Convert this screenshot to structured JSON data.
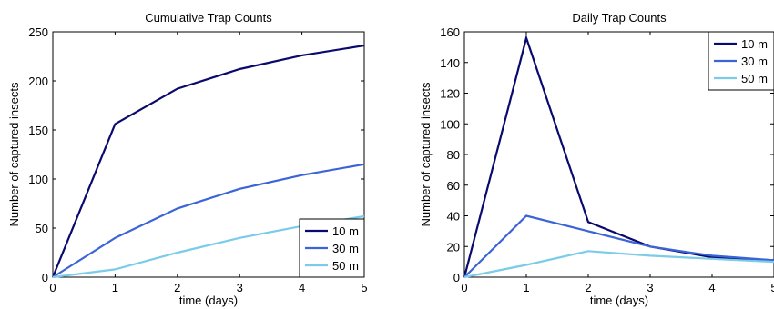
{
  "chart_data": [
    {
      "type": "line",
      "title": "Cumulative Trap Counts",
      "xlabel": "time (days)",
      "ylabel": "Number of captured insects",
      "xlim": [
        0,
        5
      ],
      "ylim": [
        0,
        250
      ],
      "xticks": [
        "0",
        "1",
        "2",
        "3",
        "4",
        "5"
      ],
      "yticks": [
        "0",
        "50",
        "100",
        "150",
        "200",
        "250"
      ],
      "legend_position": "bottom-right",
      "x": [
        0,
        1,
        2,
        3,
        4,
        5
      ],
      "series": [
        {
          "name": "10 m",
          "color": "#0a0a6e",
          "values": [
            0,
            156,
            192,
            212,
            226,
            236
          ]
        },
        {
          "name": "30 m",
          "color": "#3b64d6",
          "values": [
            0,
            40,
            70,
            90,
            104,
            115
          ]
        },
        {
          "name": "50 m",
          "color": "#7ccbe8",
          "values": [
            0,
            8,
            25,
            40,
            52,
            62
          ]
        }
      ]
    },
    {
      "type": "line",
      "title": "Daily Trap Counts",
      "xlabel": "time (days)",
      "ylabel": "Number of captured insects",
      "xlim": [
        0,
        5
      ],
      "ylim": [
        0,
        160
      ],
      "xticks": [
        "0",
        "1",
        "2",
        "3",
        "4",
        "5"
      ],
      "yticks": [
        "0",
        "20",
        "40",
        "60",
        "80",
        "100",
        "120",
        "140",
        "160"
      ],
      "legend_position": "top-right",
      "x": [
        0,
        1,
        2,
        3,
        4,
        5
      ],
      "series": [
        {
          "name": "10 m",
          "color": "#0a0a6e",
          "values": [
            0,
            156,
            36,
            20,
            13,
            11
          ]
        },
        {
          "name": "30 m",
          "color": "#3b64d6",
          "values": [
            0,
            40,
            30,
            20,
            14,
            11
          ]
        },
        {
          "name": "50 m",
          "color": "#7ccbe8",
          "values": [
            0,
            8,
            17,
            14,
            12,
            10
          ]
        }
      ]
    }
  ]
}
